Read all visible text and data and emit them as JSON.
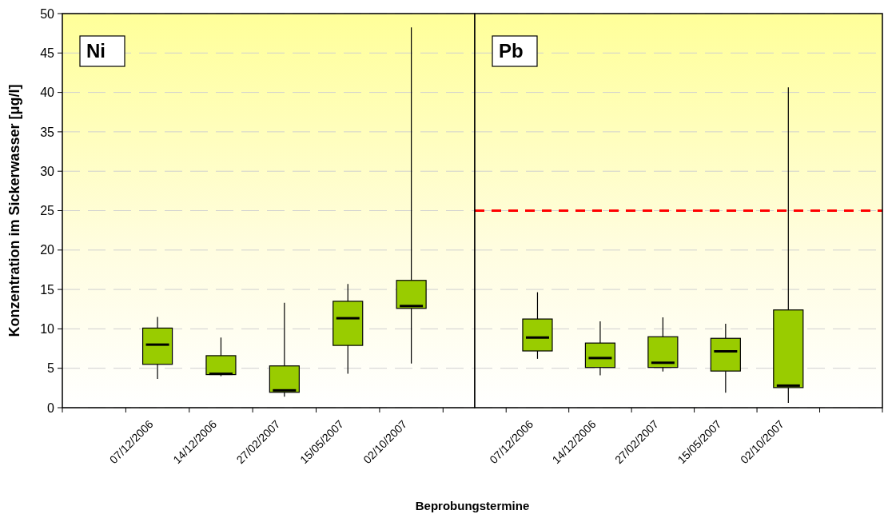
{
  "chart_data": [
    {
      "type": "box",
      "title": "Ni",
      "ylabel": "Konzentration im Sickerwasser [μg/l]",
      "xlabel": "Beprobungstermine",
      "categories": [
        "07/12/2006",
        "14/12/2006",
        "27/02/2007",
        "15/05/2007",
        "02/10/2007"
      ],
      "ylim": [
        0,
        50
      ],
      "yticks": [
        0,
        5,
        10,
        15,
        20,
        25,
        30,
        35,
        40,
        45,
        50
      ],
      "grid": "y",
      "series": [
        {
          "color": "#99cc00",
          "boxes": [
            {
              "low": 3.65,
              "q1": 5.5,
              "median": 8.0,
              "q3": 10.1,
              "high": 11.5
            },
            {
              "low": 4.0,
              "q1": 4.2,
              "median": 4.3,
              "q3": 6.6,
              "high": 8.9
            },
            {
              "low": 1.4,
              "q1": 1.95,
              "median": 2.2,
              "q3": 5.3,
              "high": 13.3
            },
            {
              "low": 4.3,
              "q1": 7.9,
              "median": 11.35,
              "q3": 13.5,
              "high": 15.7
            },
            {
              "low": 5.6,
              "q1": 12.6,
              "median": 12.9,
              "q3": 16.15,
              "high": 48.25
            }
          ]
        }
      ]
    },
    {
      "type": "box",
      "title": "Pb",
      "categories": [
        "07/12/2006",
        "14/12/2006",
        "27/02/2007",
        "15/05/2007",
        "02/10/2007"
      ],
      "ylim": [
        0,
        50
      ],
      "grid": "y",
      "tick_labels": "x",
      "ref_lines": [
        {
          "axis": "y",
          "value": 25,
          "color": "#ff0000",
          "line_style": "dashed"
        }
      ],
      "series": [
        {
          "color": "#99cc00",
          "boxes": [
            {
              "low": 6.2,
              "q1": 7.2,
              "median": 8.9,
              "q3": 11.25,
              "high": 14.65
            },
            {
              "low": 4.1,
              "q1": 5.1,
              "median": 6.3,
              "q3": 8.2,
              "high": 10.95
            },
            {
              "low": 4.6,
              "q1": 5.1,
              "median": 5.7,
              "q3": 9.0,
              "high": 11.45
            },
            {
              "low": 1.9,
              "q1": 4.65,
              "median": 7.15,
              "q3": 8.8,
              "high": 10.65
            },
            {
              "low": 0.6,
              "q1": 2.55,
              "median": 2.8,
              "q3": 12.4,
              "high": 40.65
            }
          ]
        }
      ]
    }
  ]
}
